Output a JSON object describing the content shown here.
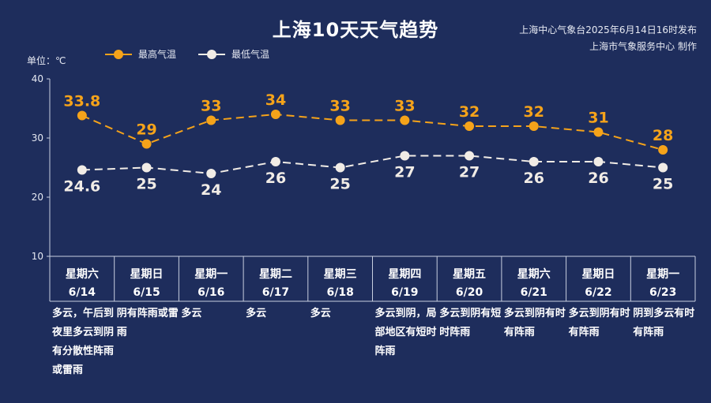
{
  "title": "上海10天天气趋势",
  "source_lines": [
    "上海中心气象台2025年6月14日16时发布",
    "上海市气象服务中心 制作"
  ],
  "unit_label": "单位：℃",
  "colors": {
    "background": "#1e2d5c",
    "high": "#f5a31a",
    "low": "#f1ece6",
    "axis": "#c8cfe0"
  },
  "chart_data": {
    "type": "line",
    "ylim": [
      10,
      40
    ],
    "yticks": [
      "10",
      "20",
      "30",
      "40"
    ],
    "categories": [
      {
        "weekday": "星期六",
        "date": "6/14",
        "desc": "多云，午后到夜里多云到阴有分散性阵雨或雷雨"
      },
      {
        "weekday": "星期日",
        "date": "6/15",
        "desc": "阴有阵雨或雷雨"
      },
      {
        "weekday": "星期一",
        "date": "6/16",
        "desc": "多云"
      },
      {
        "weekday": "星期二",
        "date": "6/17",
        "desc": "多云"
      },
      {
        "weekday": "星期三",
        "date": "6/18",
        "desc": "多云"
      },
      {
        "weekday": "星期四",
        "date": "6/19",
        "desc": "多云到阴，局部地区有短时阵雨"
      },
      {
        "weekday": "星期五",
        "date": "6/20",
        "desc": "多云到阴有短时阵雨"
      },
      {
        "weekday": "星期六",
        "date": "6/21",
        "desc": "多云到阴有时有阵雨"
      },
      {
        "weekday": "星期日",
        "date": "6/22",
        "desc": "多云到阴有时有阵雨"
      },
      {
        "weekday": "星期一",
        "date": "6/23",
        "desc": "阴到多云有时有阵雨"
      }
    ],
    "series": [
      {
        "name": "最高气温",
        "values": [
          33.8,
          29,
          33,
          34,
          33,
          33,
          32,
          32,
          31,
          28
        ],
        "labels": [
          "33.8",
          "29",
          "33",
          "34",
          "33",
          "33",
          "32",
          "32",
          "31",
          "28"
        ]
      },
      {
        "name": "最低气温",
        "values": [
          24.6,
          25,
          24,
          26,
          25,
          27,
          27,
          26,
          26,
          25
        ],
        "labels": [
          "24.6",
          "25",
          "24",
          "26",
          "25",
          "27",
          "27",
          "26",
          "26",
          "25"
        ]
      }
    ]
  }
}
